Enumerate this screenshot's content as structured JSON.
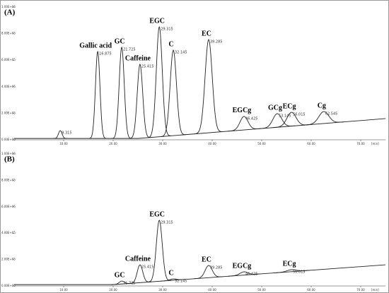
{
  "chart_data": [
    {
      "type": "chromatogram",
      "label": "(A)",
      "x_unit": "[min]",
      "xlim": [
        0,
        75
      ],
      "xticks": [
        {
          "value": 10,
          "label": "10.00"
        },
        {
          "value": 20,
          "label": "20.00"
        },
        {
          "value": 30,
          "label": "30.00"
        },
        {
          "value": 40,
          "label": "40.00"
        },
        {
          "value": 50,
          "label": "50.00"
        },
        {
          "value": 60,
          "label": "60.00"
        },
        {
          "value": 70,
          "label": "70.00"
        }
      ],
      "ylim": [
        0,
        1000000
      ],
      "yticks": [
        {
          "value": 0,
          "label": "0.00E+00"
        },
        {
          "value": 200000,
          "label": "2.00E+05"
        },
        {
          "value": 400000,
          "label": "4.00E+05"
        },
        {
          "value": 600000,
          "label": "6.00E+05"
        },
        {
          "value": 800000,
          "label": "8.00E+05"
        },
        {
          "value": 1000000,
          "label": "1.00E+06"
        }
      ],
      "baseline": {
        "x": [
          0,
          25,
          75
        ],
        "values": [
          10000,
          10000,
          160000
        ]
      },
      "peaks": {
        "names": [
          null,
          "Gallic acid",
          "GC",
          "Caffeine",
          "EGC",
          "C",
          "EC",
          "EGCg",
          "GCg",
          "ECg",
          "Cg"
        ],
        "x": [
          9.315,
          16.875,
          21.725,
          25.415,
          29.315,
          32.145,
          39.285,
          46.425,
          53.145,
          56.015,
          62.545
        ],
        "values": [
          69000,
          665000,
          697000,
          569000,
          851000,
          675000,
          755000,
          176000,
          197000,
          207000,
          213000
        ]
      }
    },
    {
      "type": "chromatogram",
      "label": "(B)",
      "x_unit": "[min]",
      "xlim": [
        0,
        75
      ],
      "xticks": [
        {
          "value": 10,
          "label": "10.00"
        },
        {
          "value": 20,
          "label": "20.00"
        },
        {
          "value": 30,
          "label": "30.00"
        },
        {
          "value": 40,
          "label": "40.00"
        },
        {
          "value": 50,
          "label": "50.00"
        },
        {
          "value": 60,
          "label": "60.00"
        },
        {
          "value": 70,
          "label": "70.00"
        }
      ],
      "ylim": [
        0,
        1000000
      ],
      "yticks": [
        {
          "value": 0,
          "label": "0.00E+00"
        },
        {
          "value": 200000,
          "label": "2.00E+05"
        },
        {
          "value": 400000,
          "label": "4.00E+05"
        },
        {
          "value": 600000,
          "label": "6.00E+05"
        },
        {
          "value": 800000,
          "label": "8.00E+05"
        },
        {
          "value": 1000000,
          "label": "1.00E+06"
        }
      ],
      "baseline": {
        "x": [
          0,
          20,
          75
        ],
        "values": [
          10000,
          10000,
          160000
        ]
      },
      "peaks": {
        "names": [
          "GC",
          "Caffeine",
          "EGC",
          "C",
          "EC",
          "EGCg",
          "ECg"
        ],
        "x": [
          21.725,
          25.415,
          29.315,
          32.145,
          39.285,
          46.425,
          56.015
        ],
        "values": [
          37000,
          160000,
          497000,
          53000,
          155000,
          107000,
          123000
        ]
      }
    }
  ]
}
